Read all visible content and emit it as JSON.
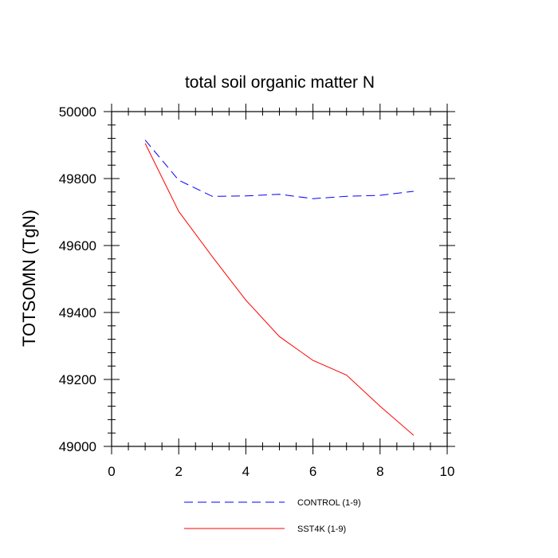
{
  "chart_data": {
    "type": "line",
    "title": "total soil organic matter N",
    "xlabel": "",
    "ylabel": "TOTSOMN  (TgN)",
    "xlim": [
      0,
      10
    ],
    "ylim": [
      49000,
      50000
    ],
    "x_ticks": [
      0,
      2,
      4,
      6,
      8,
      10
    ],
    "y_ticks": [
      49000,
      49200,
      49400,
      49600,
      49800,
      50000
    ],
    "x_tick_labels": [
      "0",
      "2",
      "4",
      "6",
      "8",
      "10"
    ],
    "y_tick_labels": [
      "49000",
      "49200",
      "49400",
      "49600",
      "49800",
      "50000"
    ],
    "grid": false,
    "legend_position": "bottom-center",
    "series": [
      {
        "name": "CONTROL (1-9)",
        "color": "#0000ff",
        "style": "dashed",
        "x": [
          1,
          2,
          3,
          4,
          5,
          6,
          7,
          8,
          9
        ],
        "y": [
          49915,
          49795,
          49747,
          49748,
          49753,
          49740,
          49747,
          49750,
          49762
        ]
      },
      {
        "name": "SST4K (1-9)",
        "color": "#ff0000",
        "style": "solid",
        "x": [
          1,
          2,
          3,
          4,
          5,
          6,
          7,
          8,
          9
        ],
        "y": [
          49905,
          49702,
          49567,
          49437,
          49328,
          49257,
          49213,
          49120,
          49033
        ]
      }
    ]
  }
}
